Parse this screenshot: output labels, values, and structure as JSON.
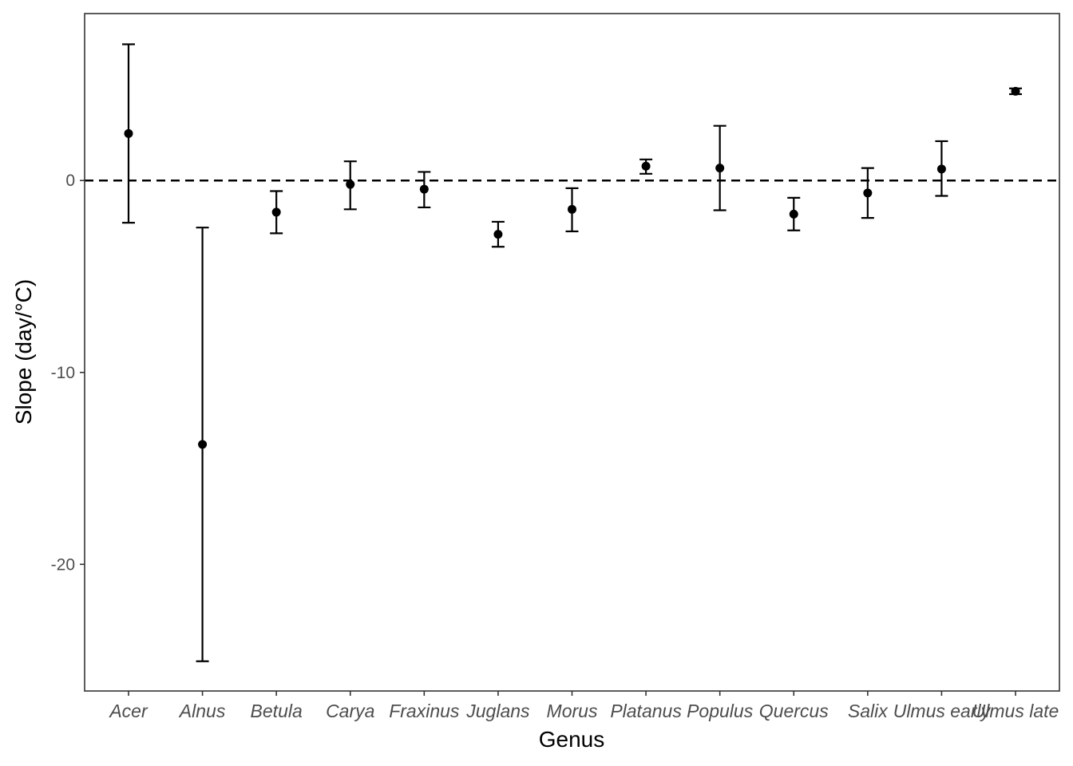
{
  "chart_data": {
    "type": "scatter",
    "subtype": "point-with-errorbars",
    "title": "",
    "xlabel": "Genus",
    "ylabel": "Slope (day/°C)",
    "categories": [
      "Acer",
      "Alnus",
      "Betula",
      "Carya",
      "Fraxinus",
      "Juglans",
      "Morus",
      "Platanus",
      "Populus",
      "Quercus",
      "Salix",
      "Ulmus early",
      "Ulmus late"
    ],
    "series": [
      {
        "values": [
          2.45,
          -13.75,
          -1.65,
          -0.2,
          -0.45,
          -2.8,
          -1.5,
          0.75,
          0.65,
          -1.75,
          -0.65,
          0.6,
          4.65
        ],
        "lower": [
          -2.2,
          -25.05,
          -2.75,
          -1.5,
          -1.4,
          -3.45,
          -2.65,
          0.35,
          -1.55,
          -2.6,
          -1.95,
          -0.8,
          4.5
        ],
        "upper": [
          7.1,
          -2.45,
          -0.55,
          1.0,
          0.45,
          -2.15,
          -0.4,
          1.1,
          2.85,
          -0.9,
          0.65,
          2.05,
          4.8
        ]
      }
    ],
    "yticks": [
      0,
      -10,
      -20
    ],
    "ylim": [
      -26.6,
      8.7
    ],
    "reference_line": {
      "y": 0,
      "style": "dashed"
    },
    "grid": false,
    "legend": "none",
    "colors": {
      "points": "#000000",
      "panel_border": "#333333",
      "ticks": "#333333",
      "tick_text": "#4d4d4d"
    }
  }
}
